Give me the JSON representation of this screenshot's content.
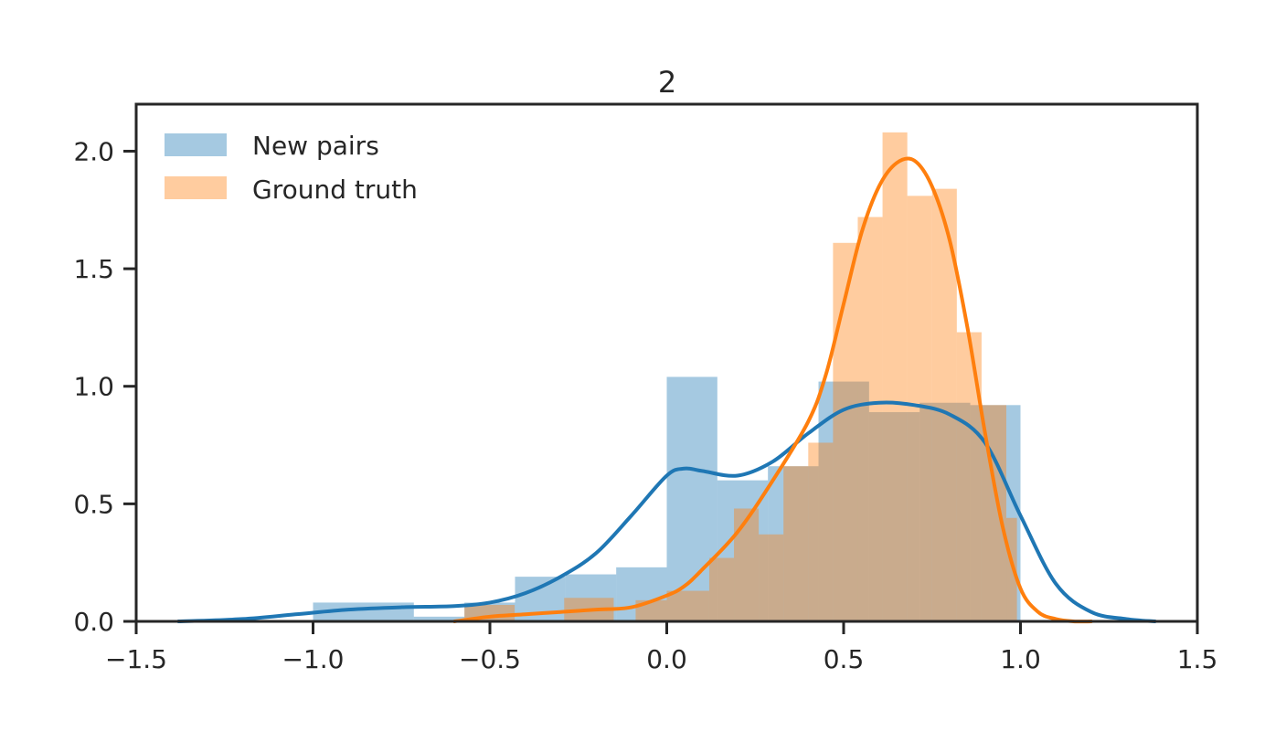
{
  "chart_data": {
    "type": "bar",
    "title": "2",
    "xlabel": "",
    "ylabel": "",
    "xlim": [
      -1.5,
      1.5
    ],
    "ylim": [
      0,
      2.2
    ],
    "xticks": [
      -1.5,
      -1.0,
      -0.5,
      0.0,
      0.5,
      1.0,
      1.5
    ],
    "xtick_labels": [
      "−1.5",
      "−1.0",
      "−0.5",
      "0.0",
      "0.5",
      "1.0",
      "1.5"
    ],
    "yticks": [
      0.0,
      0.5,
      1.0,
      1.5,
      2.0
    ],
    "ytick_labels": [
      "0.0",
      "0.5",
      "1.0",
      "1.5",
      "2.0"
    ],
    "grid": false,
    "legend_position": "top-left",
    "series": [
      {
        "name": "New pairs",
        "kind": "histogram+kde",
        "color": "#1f77b4",
        "bins": [
          {
            "x0": -1.0,
            "x1": -0.715,
            "h": 0.08
          },
          {
            "x0": -0.715,
            "x1": -0.572,
            "h": 0.02
          },
          {
            "x0": -0.572,
            "x1": -0.429,
            "h": 0.08
          },
          {
            "x0": -0.429,
            "x1": -0.286,
            "h": 0.19
          },
          {
            "x0": -0.286,
            "x1": -0.143,
            "h": 0.2
          },
          {
            "x0": -0.143,
            "x1": 0.0,
            "h": 0.23
          },
          {
            "x0": 0.0,
            "x1": 0.143,
            "h": 1.04
          },
          {
            "x0": 0.143,
            "x1": 0.286,
            "h": 0.6
          },
          {
            "x0": 0.286,
            "x1": 0.429,
            "h": 0.66
          },
          {
            "x0": 0.429,
            "x1": 0.572,
            "h": 1.02
          },
          {
            "x0": 0.572,
            "x1": 0.715,
            "h": 0.89
          },
          {
            "x0": 0.715,
            "x1": 0.858,
            "h": 0.93
          },
          {
            "x0": 0.858,
            "x1": 1.0,
            "h": 0.92
          }
        ],
        "kde": {
          "x": [
            -1.38,
            -1.2,
            -1.05,
            -0.9,
            -0.75,
            -0.6,
            -0.5,
            -0.4,
            -0.3,
            -0.2,
            -0.1,
            0.0,
            0.05,
            0.1,
            0.2,
            0.3,
            0.4,
            0.5,
            0.6,
            0.7,
            0.8,
            0.9,
            1.0,
            1.1,
            1.2,
            1.3,
            1.38
          ],
          "y": [
            0.0,
            0.01,
            0.03,
            0.05,
            0.06,
            0.065,
            0.08,
            0.12,
            0.19,
            0.29,
            0.45,
            0.62,
            0.65,
            0.64,
            0.62,
            0.68,
            0.8,
            0.9,
            0.93,
            0.92,
            0.88,
            0.76,
            0.45,
            0.16,
            0.04,
            0.01,
            0.0
          ]
        }
      },
      {
        "name": "Ground truth",
        "kind": "histogram+kde",
        "color": "#ff7f0e",
        "bins": [
          {
            "x0": -0.572,
            "x1": -0.43,
            "h": 0.07
          },
          {
            "x0": -0.43,
            "x1": -0.29,
            "h": 0.0
          },
          {
            "x0": -0.29,
            "x1": -0.15,
            "h": 0.1
          },
          {
            "x0": -0.15,
            "x1": -0.088,
            "h": 0.0
          },
          {
            "x0": -0.088,
            "x1": 0.0,
            "h": 0.09
          },
          {
            "x0": 0.0,
            "x1": 0.12,
            "h": 0.13
          },
          {
            "x0": 0.12,
            "x1": 0.19,
            "h": 0.27
          },
          {
            "x0": 0.19,
            "x1": 0.26,
            "h": 0.48
          },
          {
            "x0": 0.26,
            "x1": 0.33,
            "h": 0.37
          },
          {
            "x0": 0.33,
            "x1": 0.4,
            "h": 0.66
          },
          {
            "x0": 0.4,
            "x1": 0.47,
            "h": 0.76
          },
          {
            "x0": 0.47,
            "x1": 0.54,
            "h": 1.61
          },
          {
            "x0": 0.54,
            "x1": 0.61,
            "h": 1.72
          },
          {
            "x0": 0.61,
            "x1": 0.68,
            "h": 2.08
          },
          {
            "x0": 0.68,
            "x1": 0.75,
            "h": 1.81
          },
          {
            "x0": 0.75,
            "x1": 0.82,
            "h": 1.84
          },
          {
            "x0": 0.82,
            "x1": 0.89,
            "h": 1.23
          },
          {
            "x0": 0.89,
            "x1": 0.96,
            "h": 0.92
          },
          {
            "x0": 0.96,
            "x1": 0.99,
            "h": 0.44
          }
        ],
        "kde": {
          "x": [
            -0.6,
            -0.5,
            -0.4,
            -0.3,
            -0.2,
            -0.1,
            0.0,
            0.05,
            0.1,
            0.2,
            0.3,
            0.4,
            0.45,
            0.5,
            0.55,
            0.6,
            0.65,
            0.7,
            0.75,
            0.8,
            0.85,
            0.9,
            0.95,
            1.0,
            1.05,
            1.1,
            1.15,
            1.2
          ],
          "y": [
            0.0,
            0.02,
            0.03,
            0.04,
            0.05,
            0.06,
            0.11,
            0.15,
            0.22,
            0.38,
            0.6,
            0.85,
            1.05,
            1.35,
            1.65,
            1.85,
            1.95,
            1.96,
            1.85,
            1.62,
            1.25,
            0.8,
            0.4,
            0.14,
            0.04,
            0.01,
            0.0,
            0.0
          ]
        }
      }
    ]
  }
}
